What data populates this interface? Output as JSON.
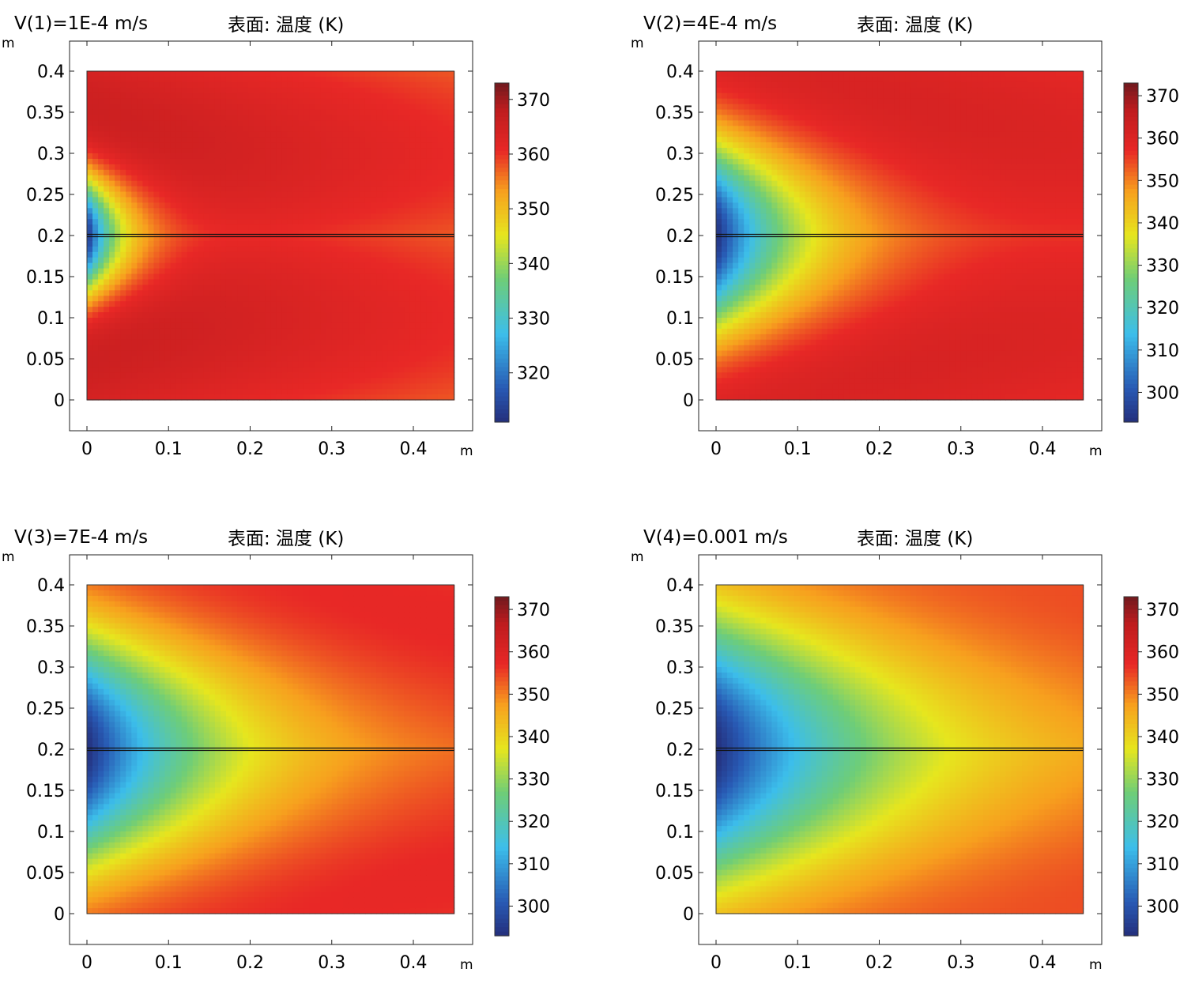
{
  "chart_data": [
    {
      "type": "heatmap",
      "title": "V(1)=1E-4 m/s",
      "subtitle": "表面: 温度 (K)",
      "xlabel": "m",
      "ylabel": "m",
      "xlim": [
        -0.022,
        0.47
      ],
      "ylim": [
        -0.037,
        0.44
      ],
      "xticks": [
        "0",
        "0.1",
        "0.2",
        "0.3",
        "0.4"
      ],
      "yticks": [
        "0",
        "0.05",
        "0.1",
        "0.15",
        "0.2",
        "0.25",
        "0.3",
        "0.35",
        "0.4"
      ],
      "domain": {
        "x": [
          0,
          0.45
        ],
        "y": [
          0,
          0.4
        ]
      },
      "channel_y": 0.2,
      "colorbar": {
        "range": [
          311,
          373
        ],
        "ticks": [
          370,
          360,
          350,
          340,
          330,
          320
        ]
      },
      "field": {
        "t_min": 311,
        "t_max": 373,
        "velocity": 0.0001
      }
    },
    {
      "type": "heatmap",
      "title": "V(2)=4E-4 m/s",
      "subtitle": "表面: 温度 (K)",
      "xlabel": "m",
      "ylabel": "m",
      "xlim": [
        -0.022,
        0.47
      ],
      "ylim": [
        -0.037,
        0.44
      ],
      "xticks": [
        "0",
        "0.1",
        "0.2",
        "0.3",
        "0.4"
      ],
      "yticks": [
        "0",
        "0.05",
        "0.1",
        "0.15",
        "0.2",
        "0.25",
        "0.3",
        "0.35",
        "0.4"
      ],
      "domain": {
        "x": [
          0,
          0.45
        ],
        "y": [
          0,
          0.4
        ]
      },
      "channel_y": 0.2,
      "colorbar": {
        "range": [
          293,
          373
        ],
        "ticks": [
          370,
          360,
          350,
          340,
          330,
          320,
          310,
          300
        ]
      },
      "field": {
        "t_min": 293,
        "t_max": 373,
        "velocity": 0.0004
      }
    },
    {
      "type": "heatmap",
      "title": "V(3)=7E-4 m/s",
      "subtitle": "表面: 温度 (K)",
      "xlabel": "m",
      "ylabel": "m",
      "xlim": [
        -0.022,
        0.47
      ],
      "ylim": [
        -0.037,
        0.44
      ],
      "xticks": [
        "0",
        "0.1",
        "0.2",
        "0.3",
        "0.4"
      ],
      "yticks": [
        "0",
        "0.05",
        "0.1",
        "0.15",
        "0.2",
        "0.25",
        "0.3",
        "0.35",
        "0.4"
      ],
      "domain": {
        "x": [
          0,
          0.45
        ],
        "y": [
          0,
          0.4
        ]
      },
      "channel_y": 0.2,
      "colorbar": {
        "range": [
          293,
          373
        ],
        "ticks": [
          370,
          360,
          350,
          340,
          330,
          320,
          310,
          300
        ]
      },
      "field": {
        "t_min": 293,
        "t_max": 373,
        "velocity": 0.0007
      }
    },
    {
      "type": "heatmap",
      "title": "V(4)=0.001 m/s",
      "subtitle": "表面: 温度 (K)",
      "xlabel": "m",
      "ylabel": "m",
      "xlim": [
        -0.022,
        0.47
      ],
      "ylim": [
        -0.037,
        0.44
      ],
      "xticks": [
        "0",
        "0.1",
        "0.2",
        "0.3",
        "0.4"
      ],
      "yticks": [
        "0",
        "0.05",
        "0.1",
        "0.15",
        "0.2",
        "0.25",
        "0.3",
        "0.35",
        "0.4"
      ],
      "domain": {
        "x": [
          0,
          0.45
        ],
        "y": [
          0,
          0.4
        ]
      },
      "channel_y": 0.2,
      "colorbar": {
        "range": [
          293,
          373
        ],
        "ticks": [
          370,
          360,
          350,
          340,
          330,
          320,
          310,
          300
        ]
      },
      "field": {
        "t_min": 293,
        "t_max": 373,
        "velocity": 0.001
      }
    }
  ]
}
